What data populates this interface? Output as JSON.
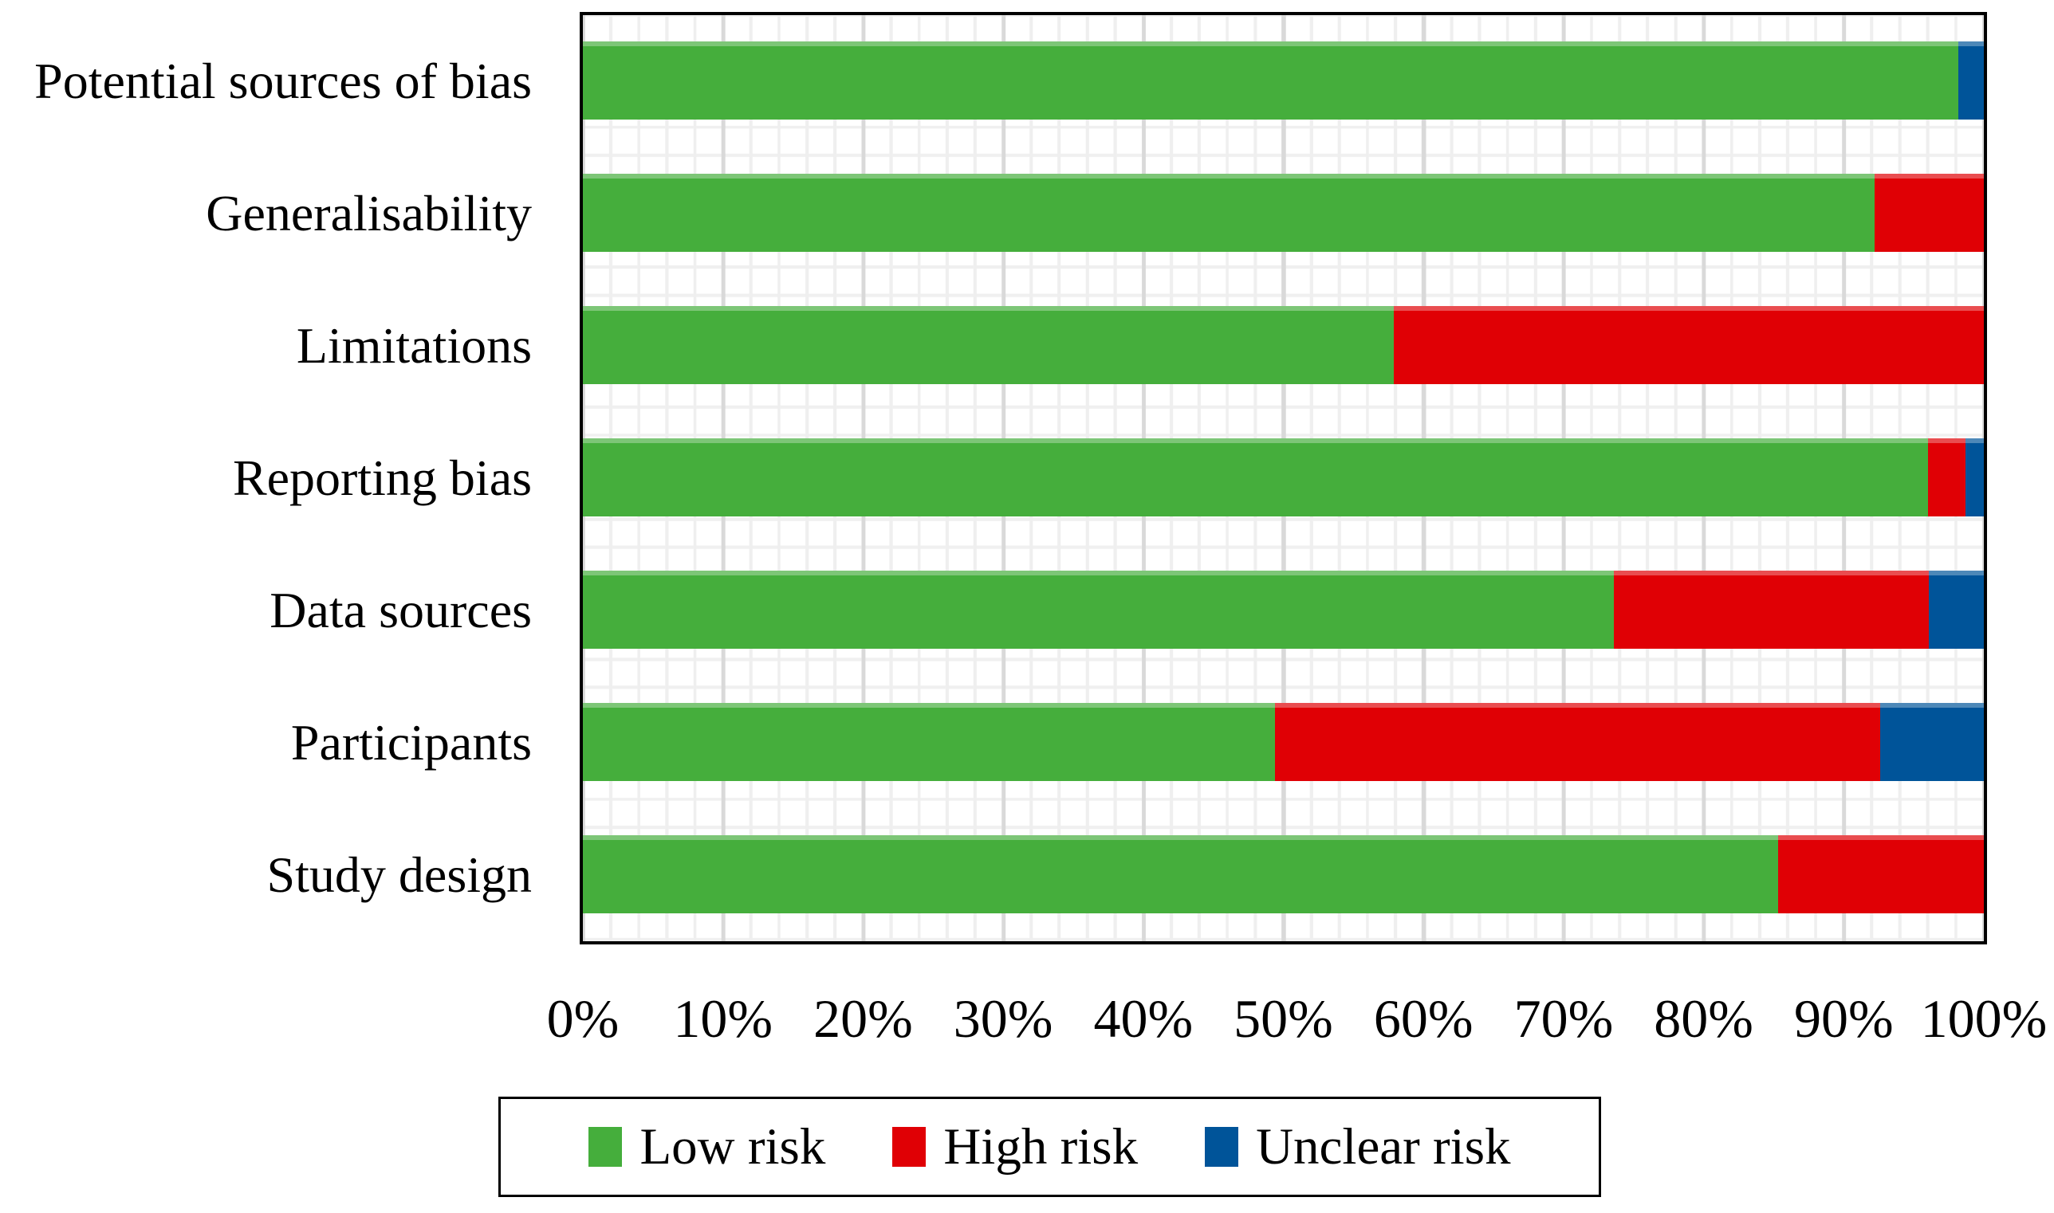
{
  "figure": {
    "background": "#ffffff",
    "text_color": "#000000",
    "grid": {
      "minor_step_pct": 2,
      "major_step_pct": 10,
      "minor_color": "#efefef",
      "major_color": "#d9d9d9"
    }
  },
  "chart_data": {
    "type": "bar",
    "orientation": "horizontal",
    "stacked": true,
    "units": "percent of studies",
    "categories": [
      "Potential sources of bias",
      "Generalisability",
      "Limitations",
      "Reporting bias",
      "Data sources",
      "Participants",
      "Study design"
    ],
    "series": [
      {
        "name": "Low risk",
        "color": "#45AE3C",
        "values": [
          98.2,
          92.2,
          57.9,
          96.0,
          73.6,
          49.4,
          85.3
        ]
      },
      {
        "name": "High risk",
        "color": "#E00005",
        "values": [
          0,
          7.8,
          42.1,
          2.7,
          22.5,
          43.2,
          14.7
        ]
      },
      {
        "name": "Unclear risk",
        "color": "#005499",
        "values": [
          1.8,
          0,
          0,
          1.3,
          3.9,
          7.4,
          0
        ]
      }
    ],
    "x_ticks": [
      "0%",
      "10%",
      "20%",
      "30%",
      "40%",
      "50%",
      "60%",
      "70%",
      "80%",
      "90%",
      "100%"
    ],
    "xlim": [
      0,
      100
    ],
    "legend_position": "bottom"
  }
}
